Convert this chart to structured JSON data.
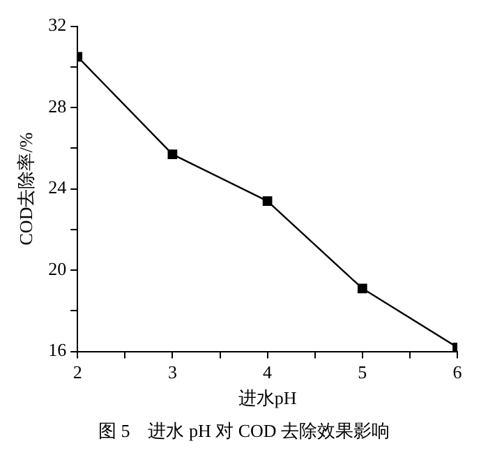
{
  "chart_data": {
    "type": "line",
    "xlabel": "进水pH",
    "ylabel": "COD去除率/%",
    "annotations": [
      "图 5　进水 pH 对 COD 去除效果影响"
    ],
    "x": [
      2,
      3,
      4,
      5,
      6
    ],
    "series": [
      {
        "color": "#000000",
        "values": [
          30.5,
          25.7,
          23.4,
          19.1,
          16.2
        ]
      }
    ],
    "xlim": [
      2,
      6
    ],
    "xticks": [
      2,
      {
        "value": 2.5,
        "label": null
      },
      3,
      {
        "value": 3.5,
        "label": null
      },
      4,
      {
        "value": 4.5,
        "label": null
      },
      5,
      {
        "value": 5.5,
        "label": null
      },
      6
    ],
    "ylim": [
      16,
      32
    ],
    "yticks": [
      16,
      {
        "value": 18,
        "label": null
      },
      20,
      {
        "value": 22,
        "label": null
      },
      24,
      {
        "value": 26,
        "label": null
      },
      28,
      {
        "value": 30,
        "label": null
      },
      32
    ],
    "marker": "square",
    "line_style": "solid",
    "grid": false,
    "legend": false
  }
}
